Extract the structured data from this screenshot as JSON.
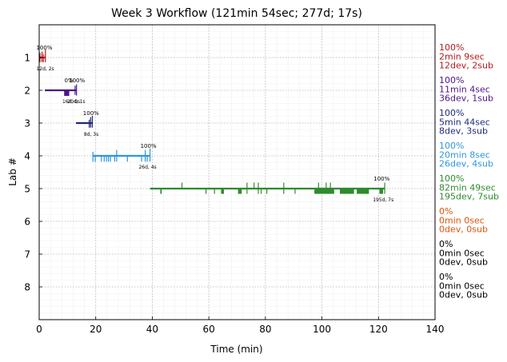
{
  "chart_data": {
    "type": "timeline",
    "title": "Week 3 Workflow (121min 54sec; 277d; 17s)",
    "xlabel": "Time (min)",
    "ylabel": "Lab #",
    "xlim": [
      0,
      140
    ],
    "ylim": [
      0,
      9
    ],
    "x_ticks": [
      0,
      20,
      40,
      60,
      80,
      100,
      120,
      140
    ],
    "y_ticks": [
      1,
      2,
      3,
      4,
      5,
      6,
      7,
      8
    ],
    "grid": true,
    "labs": [
      {
        "lab": 1,
        "color": "#b5191c",
        "line": [
          0,
          2.2
        ],
        "marks": [
          {
            "x": 0.3,
            "x2": 0.3,
            "up": 0.14,
            "down": 0.14
          },
          {
            "x": 1.0,
            "x2": 1.0,
            "up": 0.18,
            "down": 0.14
          },
          {
            "x": 1.5,
            "x2": 1.5,
            "up": 0.1,
            "down": 0.14
          },
          {
            "x": 2.2,
            "x2": 2.2,
            "up": 0.24,
            "down": 0.14
          }
        ],
        "top_labels": [
          {
            "x": -1,
            "text": "100%"
          }
        ],
        "bottom_labels": [
          {
            "x": -1,
            "text": "12d, 2s"
          }
        ],
        "side": [
          "100%",
          "2min 9sec",
          "12dev, 2sub"
        ]
      },
      {
        "lab": 2,
        "color": "#4b1589",
        "line": [
          2,
          13.2
        ],
        "marks": [
          {
            "x": 9.0,
            "x2": 10.8,
            "up": 0,
            "down": 0.17
          },
          {
            "x": 12.7,
            "x2": 12.7,
            "up": 0.14,
            "down": 0.14
          },
          {
            "x": 13.2,
            "x2": 13.2,
            "up": 0.18,
            "down": 0.16
          }
        ],
        "top_labels": [
          {
            "x": 8.9,
            "text": "0%"
          },
          {
            "x": 10.5,
            "text": "100%"
          }
        ],
        "bottom_labels": [
          {
            "x": 8.2,
            "text": "16d, 0s"
          },
          {
            "x": 10.0,
            "text": "20d, 1s"
          }
        ],
        "side": [
          "100%",
          "11min 4sec",
          "36dev, 1sub"
        ]
      },
      {
        "lab": 3,
        "color": "#1e2a78",
        "line": [
          13,
          18.8
        ],
        "marks": [
          {
            "x": 17.7,
            "x2": 17.7,
            "up": 0.1,
            "down": 0.14
          },
          {
            "x": 18.2,
            "x2": 18.2,
            "up": 0.18,
            "down": 0.14
          },
          {
            "x": 18.8,
            "x2": 18.8,
            "up": 0.22,
            "down": 0.14
          }
        ],
        "top_labels": [
          {
            "x": 15.5,
            "text": "100%"
          }
        ],
        "bottom_labels": [
          {
            "x": 15.8,
            "text": "8d, 3s"
          }
        ],
        "side": [
          "100%",
          "5min 44sec",
          "8dev, 3sub"
        ]
      },
      {
        "lab": 4,
        "color": "#2f96de",
        "line": [
          18.9,
          39.2
        ],
        "marks": [
          {
            "x": 19.0,
            "x2": 19.0,
            "up": 0.12,
            "down": 0.18
          },
          {
            "x": 19.8,
            "x2": 19.8,
            "up": 0,
            "down": 0.18
          },
          {
            "x": 22.0,
            "x2": 22.0,
            "up": 0,
            "down": 0.18
          },
          {
            "x": 23.0,
            "x2": 23.0,
            "up": 0,
            "down": 0.18
          },
          {
            "x": 23.8,
            "x2": 23.8,
            "up": 0,
            "down": 0.18
          },
          {
            "x": 24.5,
            "x2": 24.5,
            "up": 0,
            "down": 0.18
          },
          {
            "x": 25.2,
            "x2": 25.2,
            "up": 0,
            "down": 0.18
          },
          {
            "x": 26.7,
            "x2": 26.7,
            "up": 0,
            "down": 0.18
          },
          {
            "x": 27.4,
            "x2": 27.4,
            "up": 0.18,
            "down": 0.18
          },
          {
            "x": 31.2,
            "x2": 31.2,
            "up": 0,
            "down": 0.18
          },
          {
            "x": 36.2,
            "x2": 36.2,
            "up": 0,
            "down": 0.18
          },
          {
            "x": 37.5,
            "x2": 37.5,
            "up": 0.18,
            "down": 0.18
          },
          {
            "x": 38.2,
            "x2": 38.2,
            "up": 0,
            "down": 0.18
          },
          {
            "x": 39.2,
            "x2": 39.2,
            "up": 0.22,
            "down": 0.18
          }
        ],
        "top_labels": [
          {
            "x": 35.8,
            "text": "100%"
          }
        ],
        "bottom_labels": [
          {
            "x": 35.2,
            "text": "26d, 4s"
          }
        ],
        "side": [
          "100%",
          "20min 8sec",
          "26dev, 4sub"
        ]
      },
      {
        "lab": 5,
        "color": "#2e8b2e",
        "line": [
          39.2,
          122.2
        ],
        "marks": [
          {
            "x": 43.0,
            "x2": 43.5,
            "up": 0,
            "down": 0.16
          },
          {
            "x": 50.5,
            "x2": 50.5,
            "up": 0.18,
            "down": 0
          },
          {
            "x": 59.0,
            "x2": 59.0,
            "up": 0,
            "down": 0.16
          },
          {
            "x": 62.0,
            "x2": 62.0,
            "up": 0,
            "down": 0.16
          },
          {
            "x": 64.5,
            "x2": 65.5,
            "up": 0,
            "down": 0.16
          },
          {
            "x": 70.5,
            "x2": 71.8,
            "up": 0,
            "down": 0.16
          },
          {
            "x": 73.5,
            "x2": 73.5,
            "up": 0.18,
            "down": 0.16
          },
          {
            "x": 76.0,
            "x2": 76.0,
            "up": 0.18,
            "down": 0
          },
          {
            "x": 77.5,
            "x2": 77.8,
            "up": 0.18,
            "down": 0.16
          },
          {
            "x": 78.5,
            "x2": 78.5,
            "up": 0,
            "down": 0.16
          },
          {
            "x": 80.5,
            "x2": 80.5,
            "up": 0,
            "down": 0.16
          },
          {
            "x": 86.5,
            "x2": 86.5,
            "up": 0.18,
            "down": 0.16
          },
          {
            "x": 90.5,
            "x2": 90.5,
            "up": 0,
            "down": 0.16
          },
          {
            "x": 97.5,
            "x2": 104.5,
            "up": 0,
            "down": 0.16
          },
          {
            "x": 98.8,
            "x2": 98.8,
            "up": 0.18,
            "down": 0
          },
          {
            "x": 101.5,
            "x2": 101.5,
            "up": 0.18,
            "down": 0
          },
          {
            "x": 103.0,
            "x2": 103.0,
            "up": 0.18,
            "down": 0
          },
          {
            "x": 106.5,
            "x2": 111.5,
            "up": 0,
            "down": 0.16
          },
          {
            "x": 112.5,
            "x2": 116.8,
            "up": 0,
            "down": 0.16
          },
          {
            "x": 120.5,
            "x2": 121.8,
            "up": 0,
            "down": 0.16
          },
          {
            "x": 122.2,
            "x2": 122.2,
            "up": 0.18,
            "down": 0.16
          }
        ],
        "top_labels": [
          {
            "x": 118.3,
            "text": "100%"
          }
        ],
        "bottom_labels": [
          {
            "x": 118.0,
            "text": "195d, 7s"
          }
        ],
        "side": [
          "100%",
          "82min 49sec",
          "195dev, 7sub"
        ]
      },
      {
        "lab": 6,
        "color": "#e0520c",
        "line": null,
        "marks": [],
        "top_labels": [],
        "bottom_labels": [],
        "side": [
          "0%",
          "0min 0sec",
          "0dev, 0sub"
        ]
      },
      {
        "lab": 7,
        "color": "#000000",
        "line": null,
        "marks": [],
        "top_labels": [],
        "bottom_labels": [],
        "side": [
          "0%",
          "0min 0sec",
          "0dev, 0sub"
        ]
      },
      {
        "lab": 8,
        "color": "#000000",
        "line": null,
        "marks": [],
        "top_labels": [],
        "bottom_labels": [],
        "side": [
          "0%",
          "0min 0sec",
          "0dev, 0sub"
        ]
      }
    ]
  }
}
